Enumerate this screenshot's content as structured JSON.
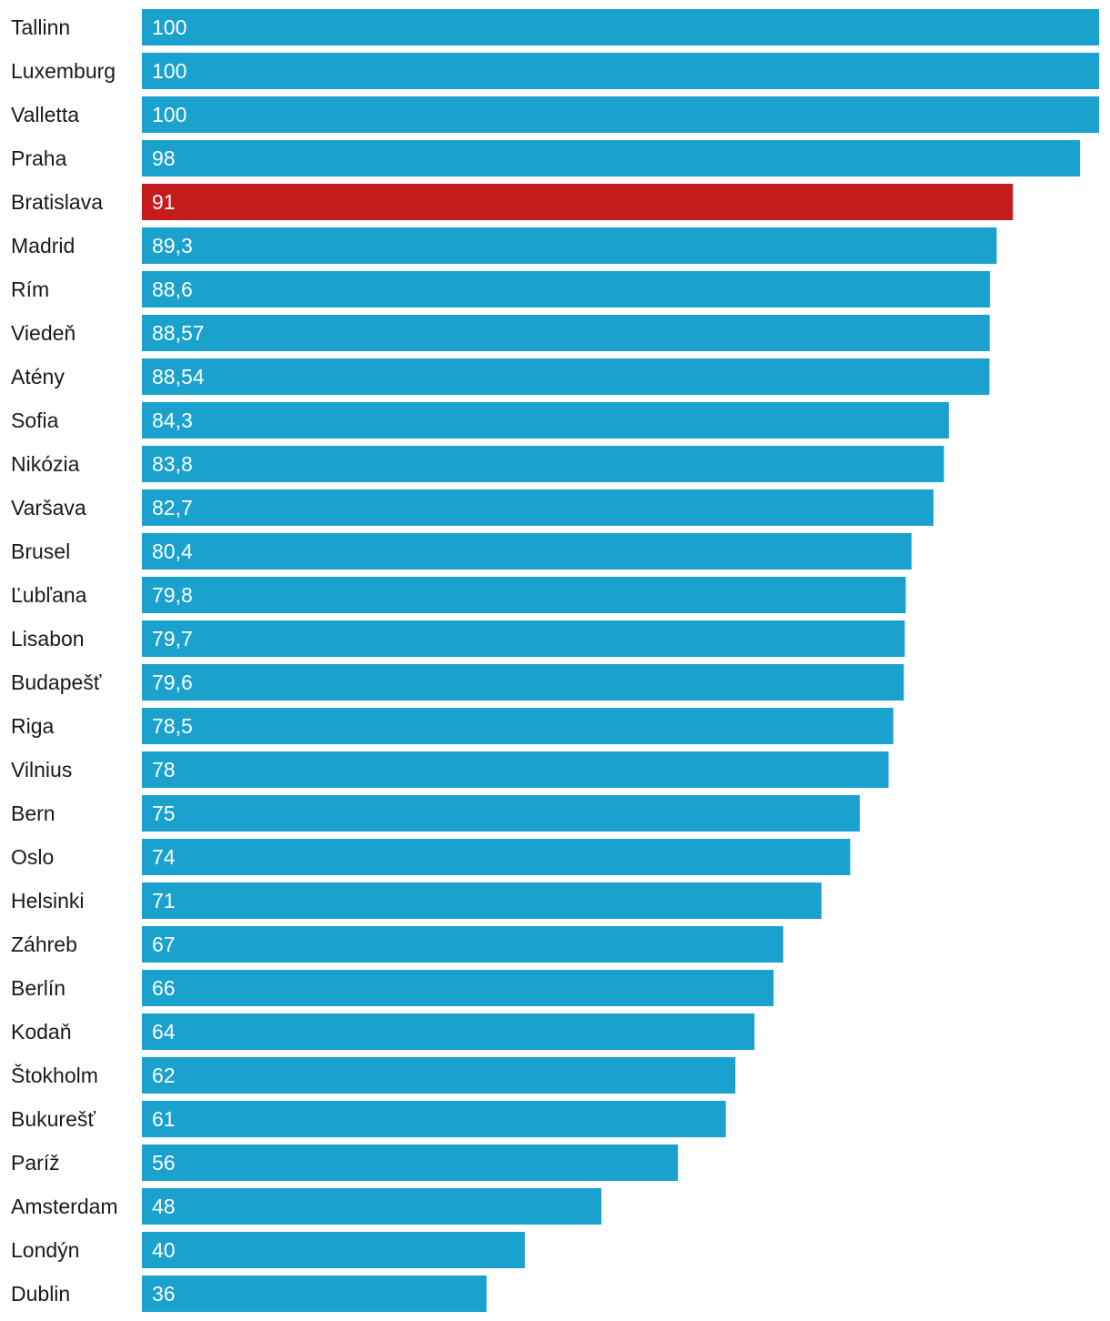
{
  "chart_data": {
    "type": "bar",
    "orientation": "horizontal",
    "title": "",
    "xlabel": "",
    "ylabel": "",
    "xlim": [
      0,
      100
    ],
    "grid": false,
    "legend": "none",
    "bar_color": "#1aa1cd",
    "highlight_color": "#c71c1e",
    "highlight_category": "Bratislava",
    "categories": [
      "Tallinn",
      "Luxemburg",
      "Valletta",
      "Praha",
      "Bratislava",
      "Madrid",
      "Rím",
      "Viedeň",
      "Atény",
      "Sofia",
      "Nikózia",
      "Varšava",
      "Brusel",
      "Ľubľana",
      "Lisabon",
      "Budapešť",
      "Riga",
      "Vilnius",
      "Bern",
      "Oslo",
      "Helsinki",
      "Záhreb",
      "Berlín",
      "Kodaň",
      "Štokholm",
      "Bukurešť",
      "Paríž",
      "Amsterdam",
      "Londýn",
      "Dublin"
    ],
    "values": [
      100,
      100,
      100,
      98,
      91,
      89.3,
      88.6,
      88.57,
      88.54,
      84.3,
      83.8,
      82.7,
      80.4,
      79.8,
      79.7,
      79.6,
      78.5,
      78,
      75,
      74,
      71,
      67,
      66,
      64,
      62,
      61,
      56,
      48,
      40,
      36
    ],
    "value_labels": [
      "100",
      "100",
      "100",
      "98",
      "91",
      "89,3",
      "88,6",
      "88,57",
      "88,54",
      "84,3",
      "83,8",
      "82,7",
      "80,4",
      "79,8",
      "79,7",
      "79,6",
      "78,5",
      "78",
      "75",
      "74",
      "71",
      "67",
      "66",
      "64",
      "62",
      "61",
      "56",
      "48",
      "40",
      "36"
    ]
  }
}
